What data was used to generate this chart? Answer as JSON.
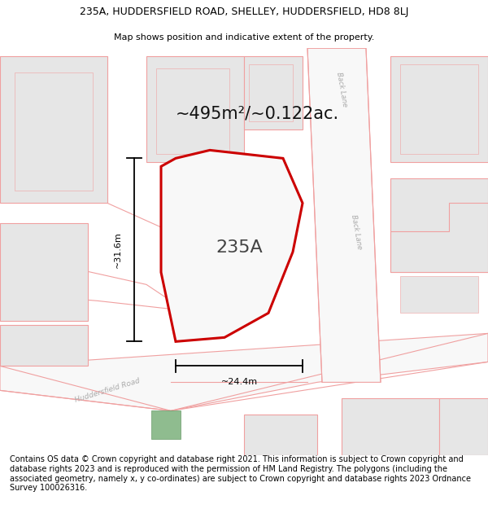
{
  "title_line1": "235A, HUDDERSFIELD ROAD, SHELLEY, HUDDERSFIELD, HD8 8LJ",
  "title_line2": "Map shows position and indicative extent of the property.",
  "area_label": "~495m²/~0.122ac.",
  "plot_label": "235A",
  "dim_height": "~31.6m",
  "dim_width": "~24.4m",
  "road_label": "Huddersfield Road",
  "back_lane_label_top": "Back Lane",
  "back_lane_label_mid": "Back Lane",
  "footer_text": "Contains OS data © Crown copyright and database right 2021. This information is subject to Crown copyright and database rights 2023 and is reproduced with the permission of HM Land Registry. The polygons (including the associated geometry, namely x, y co-ordinates) are subject to Crown copyright and database rights 2023 Ordnance Survey 100026316.",
  "bg_color": "#ffffff",
  "map_bg": "#ffffff",
  "building_fill": "#e6e6e6",
  "building_edge": "#f0a0a0",
  "road_fill": "#f5f5f5",
  "road_edge": "#f0a0a0",
  "boundary_color": "#cc0000",
  "pink_line": "#f0a0a0",
  "plot_fill": "#f0f0f0",
  "inner_building_fill": "#e0e0e0",
  "green_fill": "#8fbc8f",
  "green_edge": "#6a9a6a",
  "dim_color": "#000000",
  "label_color": "#aaaaaa",
  "title_fontsize": 9,
  "subtitle_fontsize": 8,
  "area_fontsize": 15,
  "plot_fontsize": 16,
  "footer_fontsize": 7
}
